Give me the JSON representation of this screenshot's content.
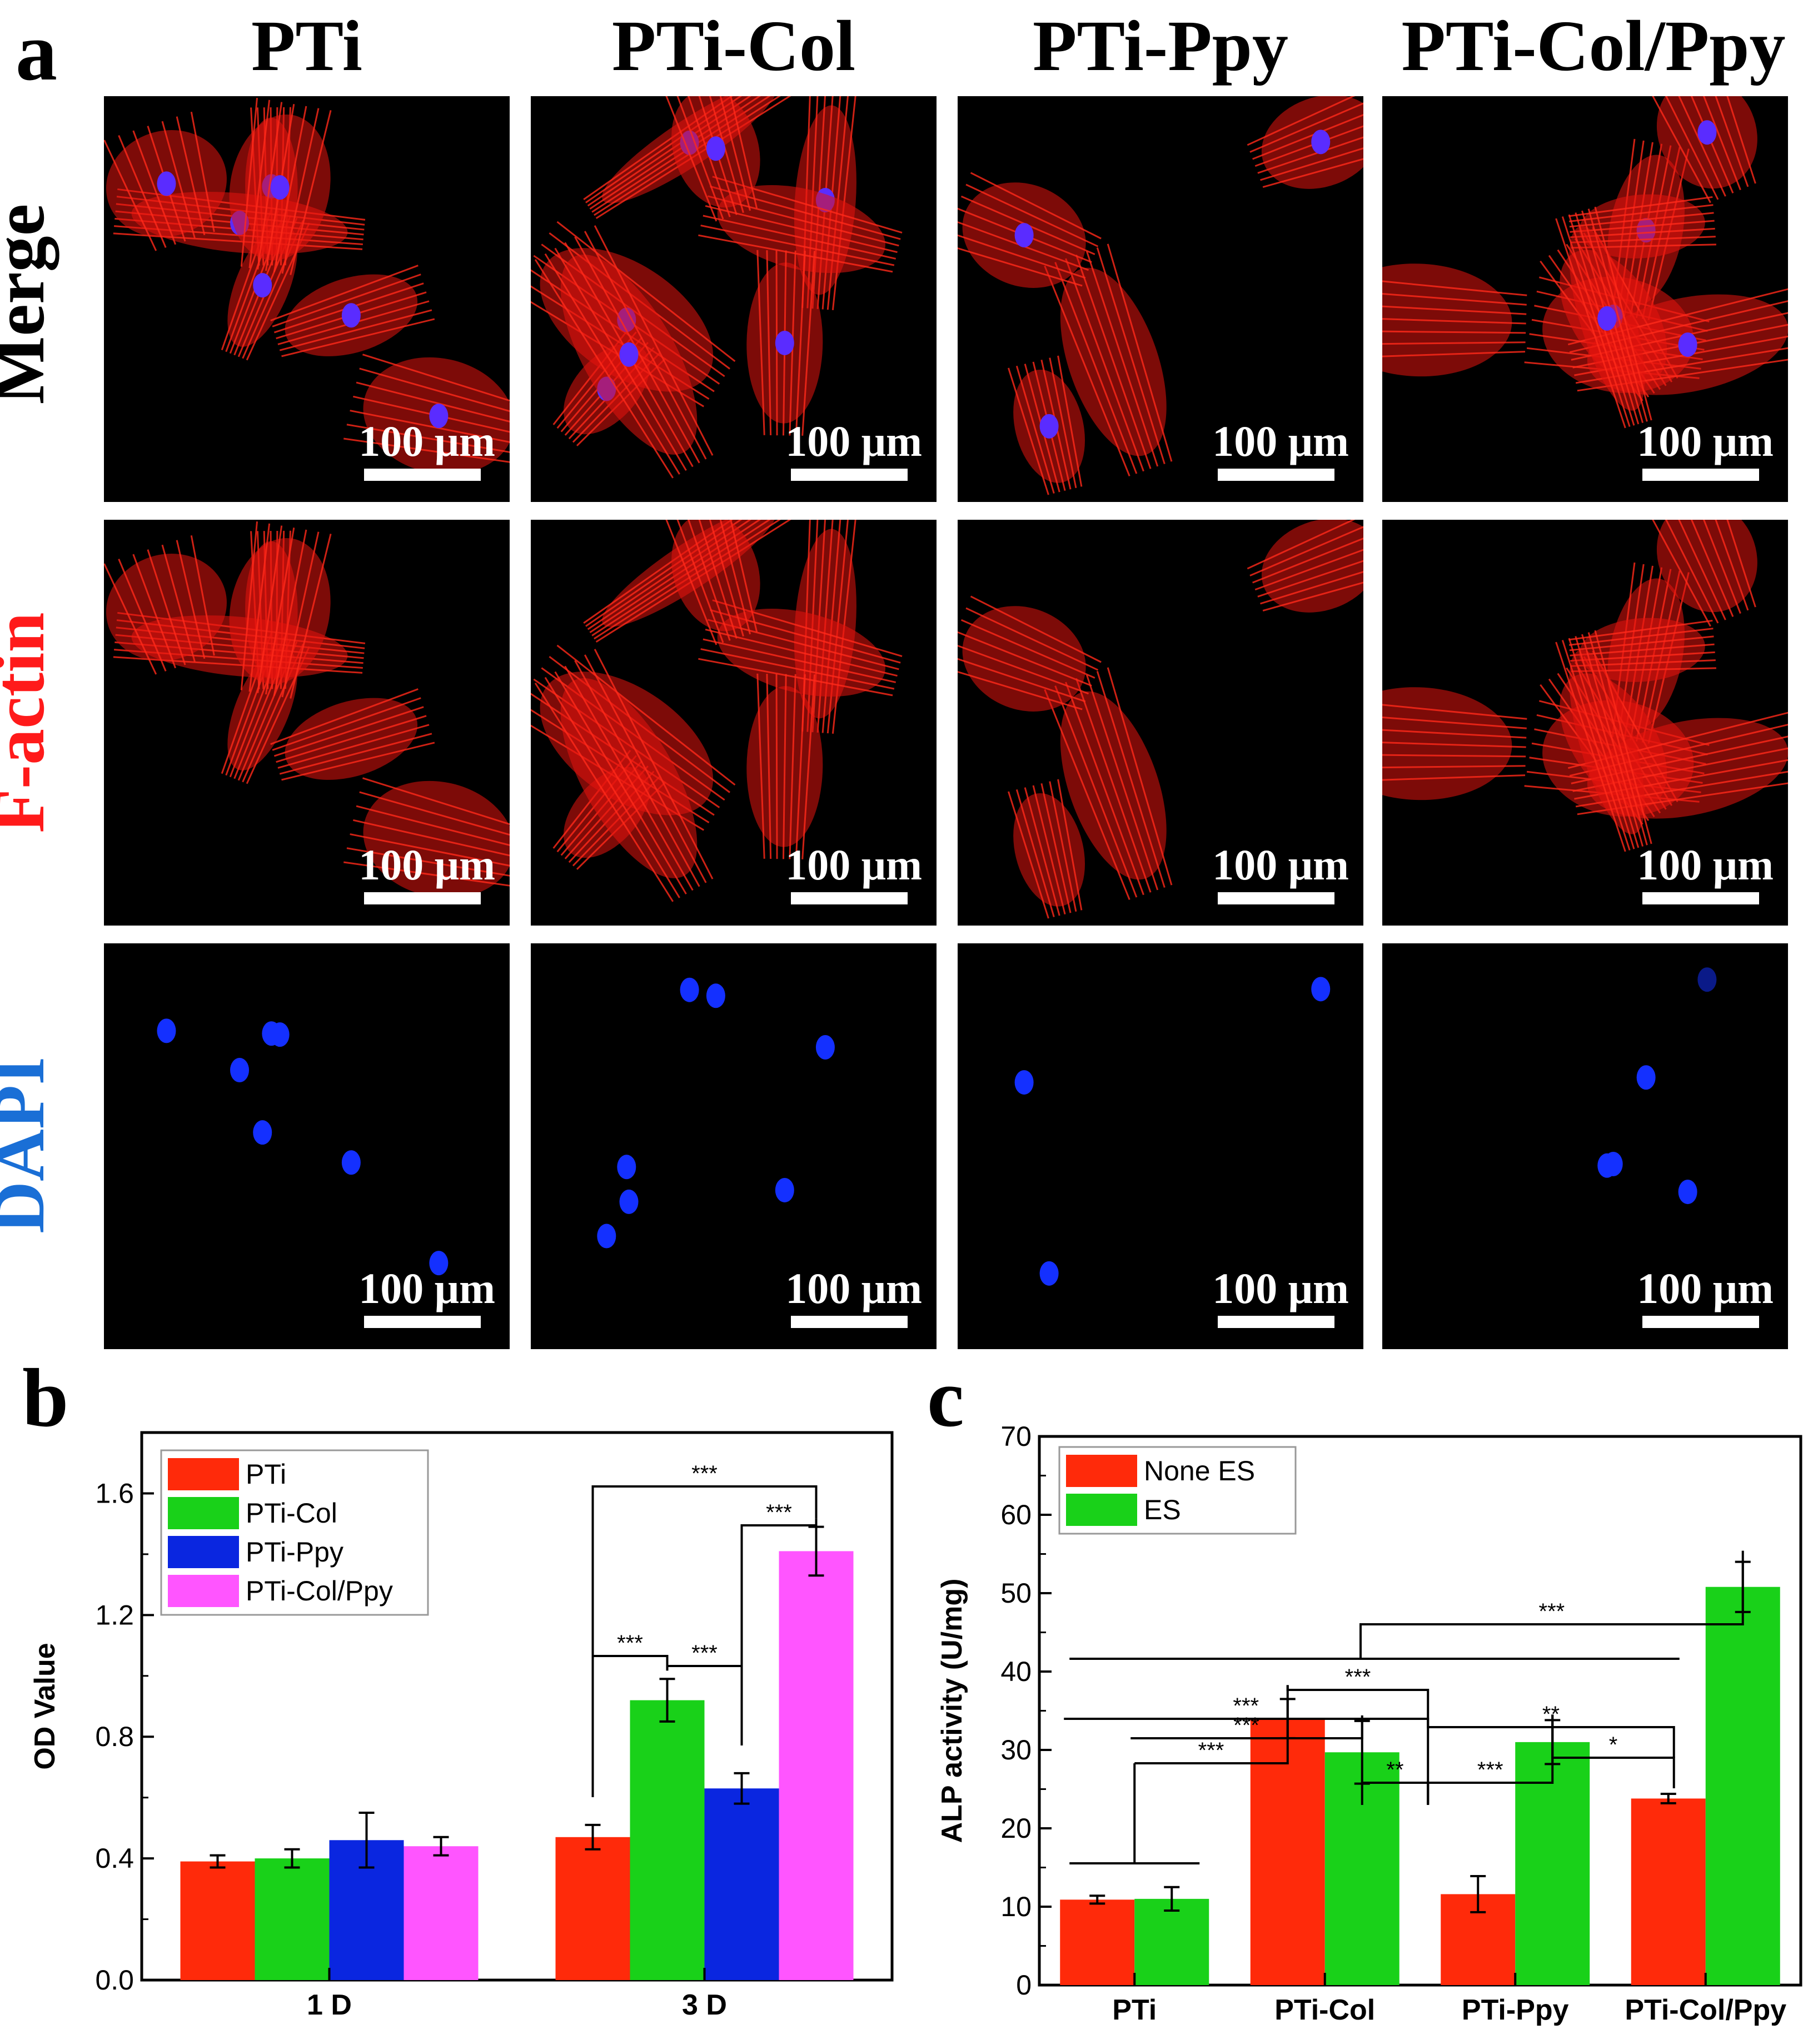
{
  "figure": {
    "panel_a_letter": "a",
    "panel_b_letter": "b",
    "panel_c_letter": "c",
    "columns": [
      "PTi",
      "PTi-Col",
      "PTi-Ppy",
      "PTi-Col/Ppy"
    ],
    "rows": [
      {
        "label": "Merge",
        "color": "#000000"
      },
      {
        "label": "F-actin",
        "color": "#ff1a1a"
      },
      {
        "label": "DAPI",
        "color": "#1a6fd6"
      }
    ],
    "scale_bar_label": "100 μm"
  },
  "chart_data": [
    {
      "type": "bar",
      "title": "",
      "xlabel": "",
      "ylabel": "OD Value",
      "ylim": [
        0.0,
        1.8
      ],
      "yticks": [
        "0.0",
        "0.4",
        "0.8",
        "1.2",
        "1.6"
      ],
      "categories": [
        "1 D",
        "3 D"
      ],
      "legend_position": "top-left",
      "series": [
        {
          "name": "PTi",
          "color": "#ff2a0a",
          "values": [
            0.39,
            0.47
          ],
          "errors": [
            0.02,
            0.04
          ]
        },
        {
          "name": "PTi-Col",
          "color": "#19d119",
          "values": [
            0.4,
            0.92
          ],
          "errors": [
            0.03,
            0.07
          ]
        },
        {
          "name": "PTi-Ppy",
          "color": "#0a26e0",
          "values": [
            0.46,
            0.63
          ],
          "errors": [
            0.09,
            0.05
          ]
        },
        {
          "name": "PTi-Col/Ppy",
          "color": "#ff55ff",
          "values": [
            0.44,
            1.41
          ],
          "errors": [
            0.03,
            0.08
          ]
        }
      ],
      "significance": [
        "***",
        "***",
        "***",
        "***"
      ]
    },
    {
      "type": "bar",
      "title": "",
      "xlabel": "",
      "ylabel": "ALP activity (U/mg)",
      "ylim": [
        0,
        70
      ],
      "yticks": [
        "0",
        "10",
        "20",
        "30",
        "40",
        "50",
        "60",
        "70"
      ],
      "categories": [
        "PTi",
        "PTi-Col",
        "PTi-Ppy",
        "PTi-Col/Ppy"
      ],
      "legend_position": "top-left",
      "series": [
        {
          "name": "None ES",
          "color": "#ff2a0a",
          "values": [
            10.9,
            34.0,
            11.6,
            23.8
          ],
          "errors": [
            0.5,
            2.5,
            2.3,
            0.6
          ]
        },
        {
          "name": "ES",
          "color": "#19d119",
          "values": [
            11.0,
            29.7,
            31.0,
            50.8
          ],
          "errors": [
            1.5,
            4.0,
            2.8,
            3.2
          ]
        }
      ],
      "significance": [
        "***",
        "***",
        "***",
        "**",
        "***",
        "**",
        "***",
        "*",
        "***"
      ]
    }
  ]
}
